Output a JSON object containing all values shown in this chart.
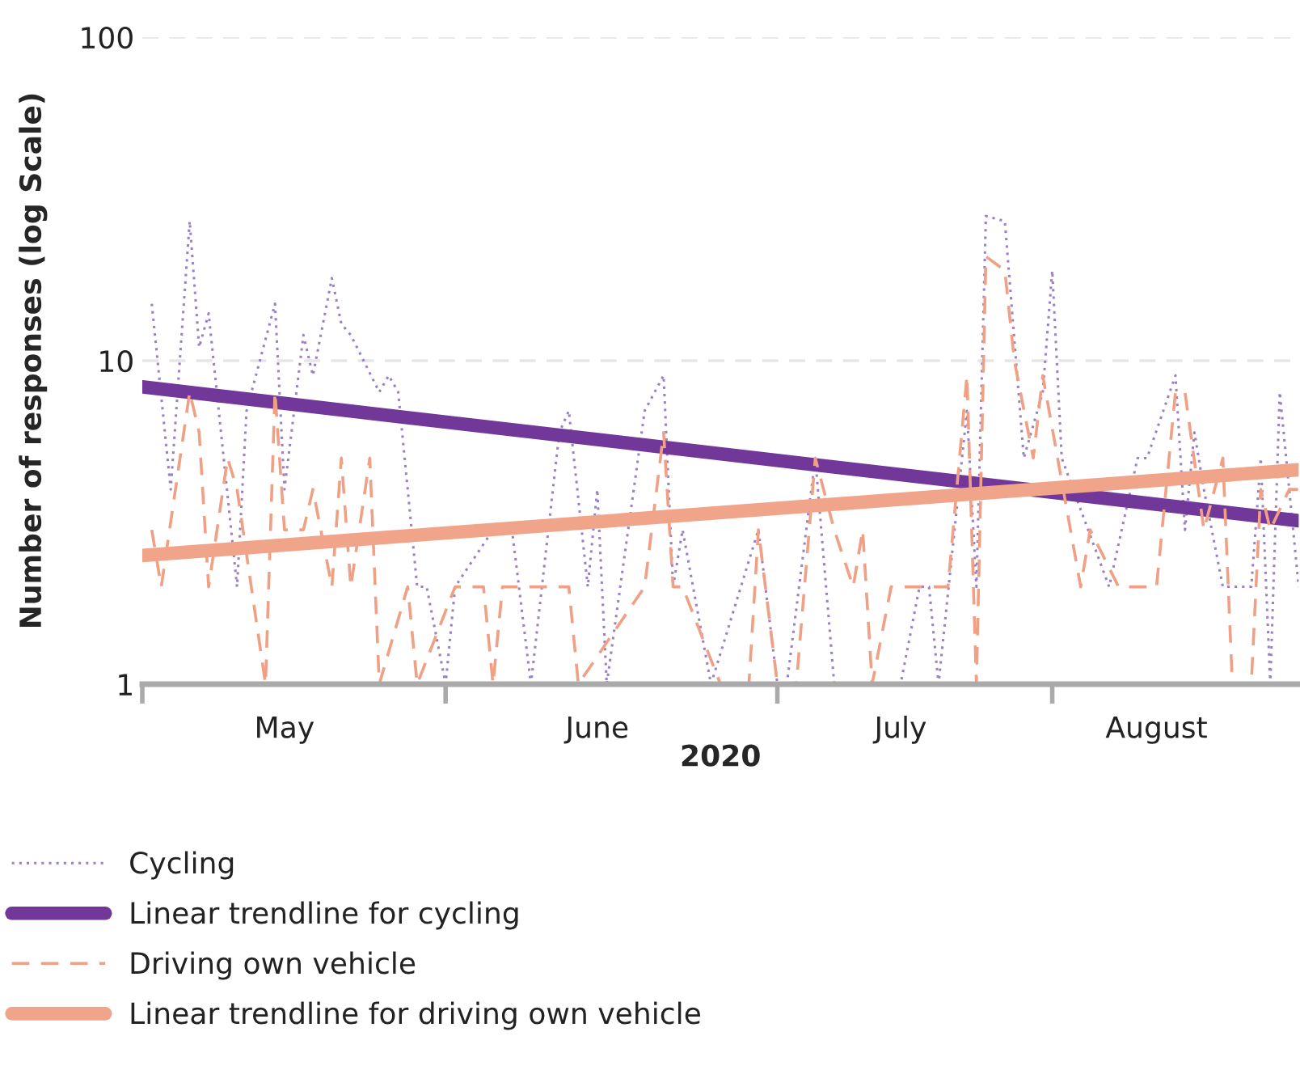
{
  "chart_data": {
    "type": "line",
    "xlabel": "2020",
    "ylabel": "Number of responses (log Scale)",
    "log": "y",
    "grid": "y",
    "legend": "bottom",
    "xlim": [
      "2020-04-28",
      "2020-08-28"
    ],
    "xticks": [
      {
        "value": "2020-04-28",
        "label": null
      },
      {
        "value": "2020-05-13",
        "label": "May"
      },
      {
        "value": "2020-05-30",
        "label": null
      },
      {
        "value": "2020-06-15",
        "label": "June"
      },
      {
        "value": "2020-07-04",
        "label": null
      },
      {
        "value": "2020-07-17",
        "label": "July"
      },
      {
        "value": "2020-08-02",
        "label": null
      },
      {
        "value": "2020-08-13",
        "label": "August"
      }
    ],
    "ylim": [
      1,
      100
    ],
    "yticks": [
      1,
      10,
      100
    ],
    "series": [
      {
        "name": "Cycling",
        "color": "#9b7fc4",
        "line_style": "dotted",
        "x": [
          "2020-04-29",
          "2020-05-01",
          "2020-05-03",
          "2020-05-04",
          "2020-05-05",
          "2020-05-08",
          "2020-05-09",
          "2020-05-12",
          "2020-05-13",
          "2020-05-15",
          "2020-05-16",
          "2020-05-18",
          "2020-05-19",
          "2020-05-20",
          "2020-05-23",
          "2020-05-24",
          "2020-05-25",
          "2020-05-27",
          "2020-05-28",
          "2020-05-30",
          "2020-05-31",
          "2020-06-04",
          "2020-06-06",
          "2020-06-08",
          "2020-06-11",
          "2020-06-12",
          "2020-06-14",
          "2020-06-15",
          "2020-06-16",
          "2020-06-20",
          "2020-06-22",
          "2020-06-23",
          "2020-06-24",
          "2020-06-27",
          "2020-07-02",
          "2020-07-04",
          "2020-07-05",
          "2020-07-08",
          "2020-07-10",
          "2020-07-17",
          "2020-07-19",
          "2020-07-20",
          "2020-07-21",
          "2020-07-24",
          "2020-07-25",
          "2020-07-26",
          "2020-07-28",
          "2020-07-30",
          "2020-08-01",
          "2020-08-02",
          "2020-08-03",
          "2020-08-08",
          "2020-08-11",
          "2020-08-12",
          "2020-08-15",
          "2020-08-16",
          "2020-08-17",
          "2020-08-18",
          "2020-08-20",
          "2020-08-23",
          "2020-08-24",
          "2020-08-25",
          "2020-08-26",
          "2020-08-28"
        ],
        "values": [
          15,
          4,
          27,
          11,
          14,
          2,
          7,
          15,
          4,
          12,
          9,
          18,
          13,
          12,
          8,
          9,
          8,
          2,
          2,
          1,
          2,
          3,
          3,
          1,
          6,
          7,
          2,
          4,
          1,
          7,
          9,
          2,
          3,
          1,
          3,
          1,
          1,
          5,
          1,
          1,
          2,
          2,
          1,
          7,
          2,
          28,
          27,
          5,
          8,
          19,
          5,
          2,
          5,
          5,
          9,
          3,
          6,
          4,
          2,
          2,
          5,
          1,
          8,
          2
        ]
      },
      {
        "name": "Linear trendline for cycling",
        "color": "#71389a",
        "line_style": "solid",
        "x": [
          "2020-04-28",
          "2020-08-28"
        ],
        "values": [
          8.3,
          3.2
        ]
      },
      {
        "name": "Driving own vehicle",
        "color": "#f0a084",
        "line_style": "dashed",
        "x": [
          "2020-04-29",
          "2020-04-30",
          "2020-05-03",
          "2020-05-04",
          "2020-05-05",
          "2020-05-07",
          "2020-05-08",
          "2020-05-11",
          "2020-05-12",
          "2020-05-13",
          "2020-05-15",
          "2020-05-16",
          "2020-05-18",
          "2020-05-19",
          "2020-05-20",
          "2020-05-22",
          "2020-05-23",
          "2020-05-26",
          "2020-05-27",
          "2020-05-31",
          "2020-06-03",
          "2020-06-04",
          "2020-06-05",
          "2020-06-12",
          "2020-06-13",
          "2020-06-20",
          "2020-06-22",
          "2020-06-23",
          "2020-06-24",
          "2020-06-28",
          "2020-07-01",
          "2020-07-02",
          "2020-07-04",
          "2020-07-06",
          "2020-07-08",
          "2020-07-10",
          "2020-07-12",
          "2020-07-13",
          "2020-07-14",
          "2020-07-16",
          "2020-07-22",
          "2020-07-24",
          "2020-07-25",
          "2020-07-26",
          "2020-07-28",
          "2020-07-29",
          "2020-07-31",
          "2020-08-01",
          "2020-08-05",
          "2020-08-06",
          "2020-08-09",
          "2020-08-13",
          "2020-08-15",
          "2020-08-16",
          "2020-08-18",
          "2020-08-20",
          "2020-08-21",
          "2020-08-23",
          "2020-08-24",
          "2020-08-25",
          "2020-08-27",
          "2020-08-28"
        ],
        "values": [
          3,
          2,
          8,
          6,
          2,
          5,
          4,
          1,
          8,
          3,
          3,
          4,
          2,
          5,
          2,
          5,
          1,
          2,
          1,
          2,
          2,
          1,
          2,
          2,
          1,
          2,
          6,
          2,
          2,
          1,
          1,
          3,
          1,
          1,
          5,
          3,
          2,
          3,
          1,
          2,
          2,
          9,
          1,
          21,
          19,
          10,
          5,
          9,
          2,
          3,
          2,
          2,
          8,
          8,
          3,
          5,
          1,
          1,
          4,
          3,
          4,
          4
        ]
      },
      {
        "name": "Linear trendline for driving own vehicle",
        "color": "#f0a58a",
        "line_style": "solid",
        "x": [
          "2020-04-28",
          "2020-08-28"
        ],
        "values": [
          2.5,
          4.6
        ]
      }
    ]
  }
}
